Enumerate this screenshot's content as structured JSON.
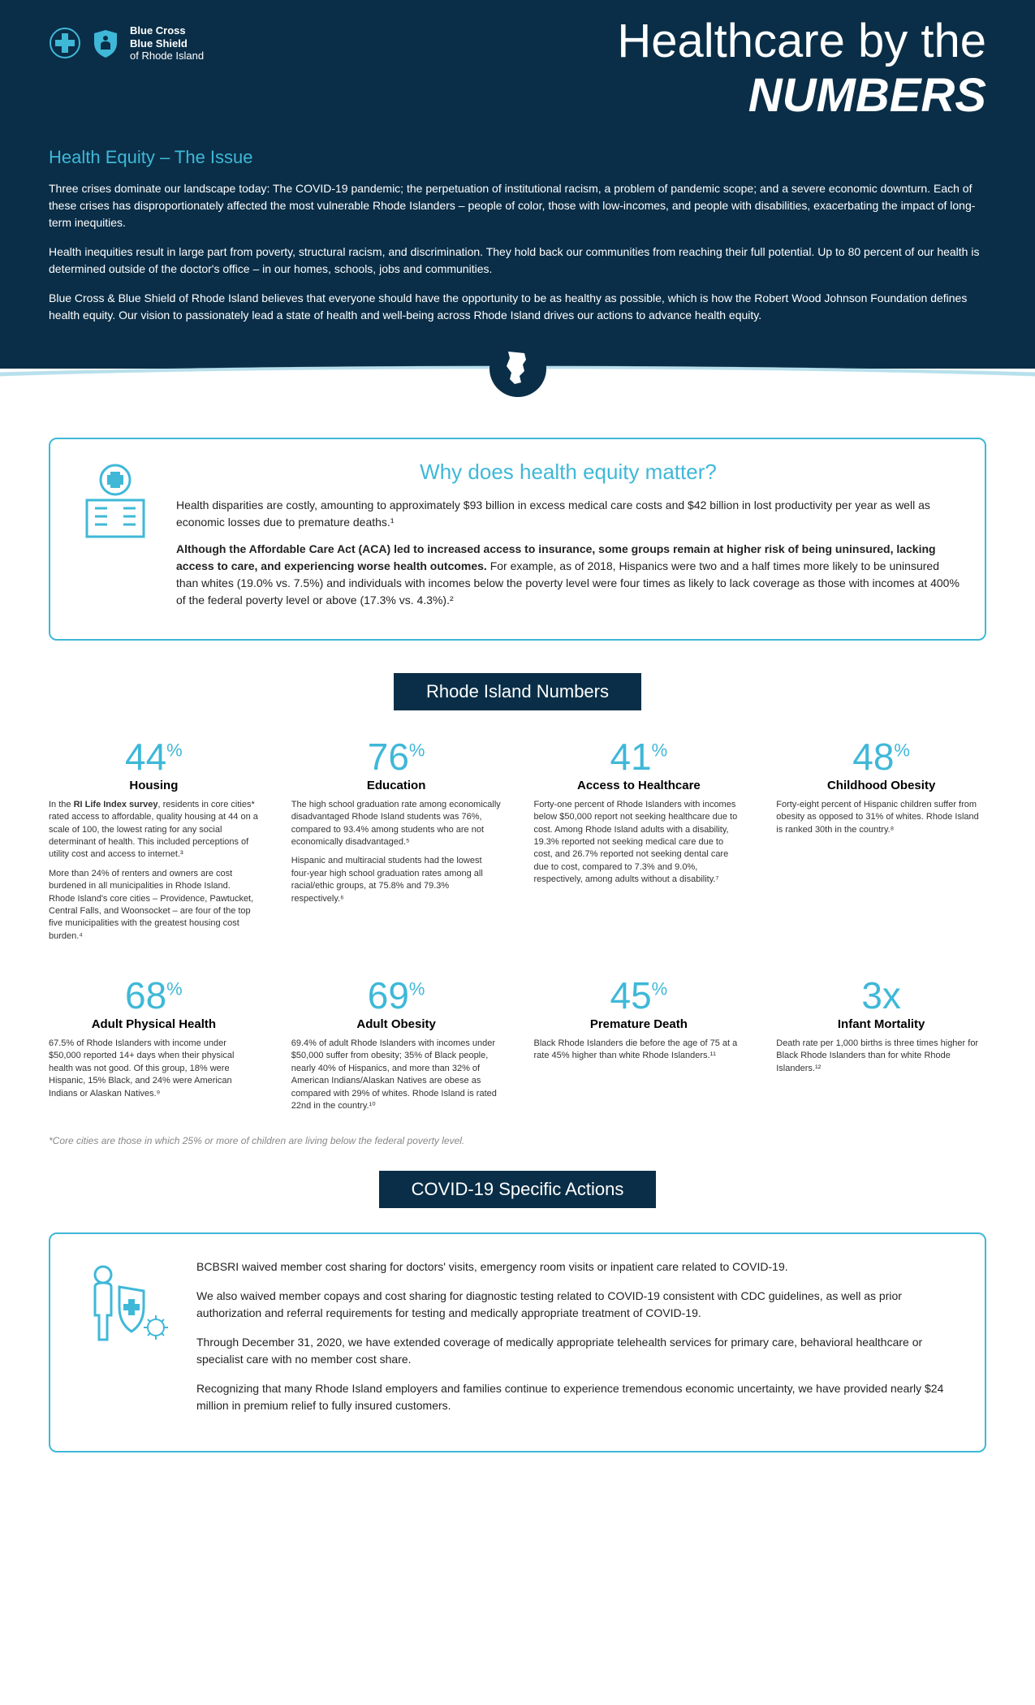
{
  "logo": {
    "line1": "Blue Cross",
    "line2": "Blue Shield",
    "line3": "of Rhode Island"
  },
  "title_line1": "Healthcare by the",
  "title_line2": "NUMBERS",
  "subtitle": "Health Equity – The Issue",
  "intro": [
    "Three crises dominate our landscape today: The COVID-19 pandemic; the perpetuation of institutional racism, a problem of pandemic scope; and a severe economic downturn. Each of these crises has disproportionately affected the most vulnerable Rhode Islanders – people of color, those with low-incomes, and people with disabilities, exacerbating the impact of long-term inequities.",
    "Health inequities result in large part from poverty, structural racism, and discrimination. They hold back our communities from reaching their full potential. Up to 80 percent of our health is determined outside of the doctor's office – in our homes, schools, jobs and communities.",
    "Blue Cross & Blue Shield of Rhode Island believes that everyone should have the opportunity to be as healthy as possible, which is how the Robert Wood Johnson Foundation defines health equity. Our vision to passionately lead a state of health and well-being across Rhode Island drives our actions to advance health equity."
  ],
  "why": {
    "title": "Why does health equity matter?",
    "p1": "Health disparities are costly, amounting to approximately $93 billion in excess medical care costs and $42 billion in lost productivity per year as well as economic losses due to premature deaths.¹",
    "p2bold": "Although the Affordable Care Act (ACA) led to increased access to insurance, some groups remain at higher risk of being uninsured, lacking access to care, and experiencing worse health outcomes.",
    "p2rest": " For example, as of 2018, Hispanics were two and a half times more likely to be uninsured than whites (19.0% vs. 7.5%) and individuals with incomes below the poverty level were four times as likely to lack coverage as those with incomes at 400% of the federal poverty level or above (17.3% vs. 4.3%).²"
  },
  "ri_label": "Rhode Island Numbers",
  "stats": [
    {
      "num": "44",
      "sup": "%",
      "title": "Housing",
      "body": [
        "In the <b>RI Life Index survey</b>, residents in core cities* rated access to affordable, quality housing at 44 on a scale of 100, the lowest rating for any social determinant of health. This included perceptions of utility cost and access to internet.³",
        "More than 24% of renters and owners are cost burdened in all municipalities in Rhode Island. Rhode Island's core cities – Providence, Pawtucket, Central Falls, and Woonsocket – are four of the top five municipalities with the greatest housing cost burden.⁴"
      ]
    },
    {
      "num": "76",
      "sup": "%",
      "title": "Education",
      "body": [
        "The high school graduation rate among economically disadvantaged Rhode Island students was 76%, compared to 93.4% among students who are not economically disadvantaged.⁵",
        "Hispanic and multiracial students had the lowest four-year high school graduation rates among all racial/ethic groups, at 75.8% and 79.3% respectively.⁶"
      ]
    },
    {
      "num": "41",
      "sup": "%",
      "title": "Access to Healthcare",
      "body": [
        "Forty-one percent of Rhode Islanders with incomes below $50,000 report not seeking healthcare due to cost. Among Rhode Island adults with a disability, 19.3% reported not seeking medical care due to cost, and 26.7% reported not seeking dental care due to cost, compared to 7.3% and 9.0%, respectively, among adults without a disability.⁷"
      ]
    },
    {
      "num": "48",
      "sup": "%",
      "title": "Childhood Obesity",
      "body": [
        "Forty-eight percent of Hispanic children suffer from obesity as opposed to 31% of whites. Rhode Island is ranked 30th in the country.⁸"
      ]
    },
    {
      "num": "68",
      "sup": "%",
      "title": "Adult Physical Health",
      "body": [
        "67.5% of Rhode Islanders with income under $50,000 reported 14+ days when their physical health was not good. Of this group, 18% were Hispanic, 15% Black, and 24% were American Indians or Alaskan Natives.⁹"
      ]
    },
    {
      "num": "69",
      "sup": "%",
      "title": "Adult Obesity",
      "body": [
        "69.4% of adult Rhode Islanders with incomes under $50,000 suffer from obesity; 35% of Black people, nearly 40% of Hispanics, and more than 32% of American Indians/Alaskan Natives are obese as compared with 29% of whites. Rhode Island is rated 22nd in the country.¹⁰"
      ]
    },
    {
      "num": "45",
      "sup": "%",
      "title": "Premature Death",
      "body": [
        "Black Rhode Islanders die before the age of 75 at a rate 45% higher than white Rhode Islanders.¹¹"
      ]
    },
    {
      "num": "3x",
      "sup": "",
      "title": "Infant Mortality",
      "body": [
        "Death rate per 1,000 births is three times higher for Black Rhode Islanders than for white Rhode Islanders.¹²"
      ]
    }
  ],
  "footnote": "*Core cities are those in which 25% or more of children are living below the federal poverty level.",
  "covid_label": "COVID-19 Specific Actions",
  "covid": [
    "BCBSRI waived member cost sharing for doctors' visits, emergency room visits or inpatient care related to COVID-19.",
    "We also waived member copays and cost sharing for diagnostic testing related to COVID-19 consistent with CDC guidelines, as well as prior authorization and referral requirements for testing and medically appropriate treatment of COVID-19.",
    "Through December 31, 2020, we have extended coverage of medically appropriate telehealth services for primary care, behavioral healthcare or specialist care with no member cost share.",
    "Recognizing that many Rhode Island employers and families continue to experience tremendous economic uncertainty, we have provided nearly $24 million in premium relief to fully insured customers."
  ],
  "colors": {
    "header_bg": "#0a2e47",
    "accent": "#3fb8d8"
  }
}
